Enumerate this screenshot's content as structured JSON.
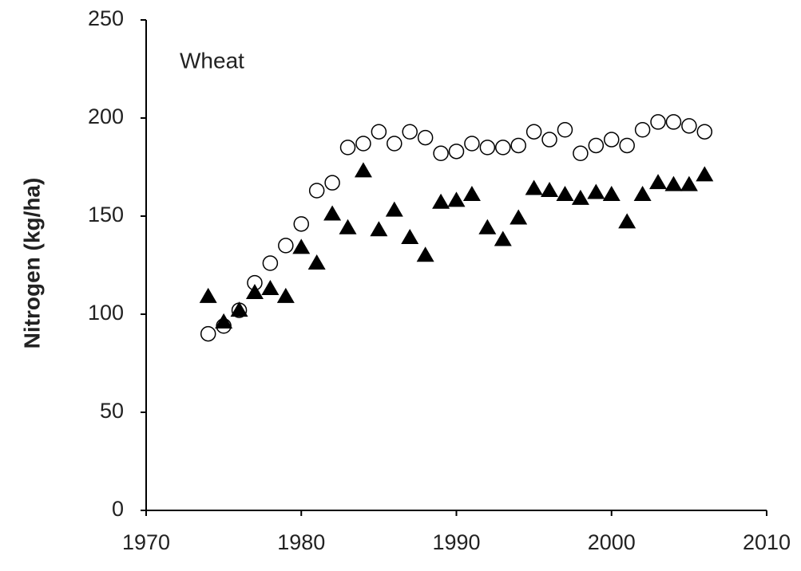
{
  "chart_data": {
    "type": "scatter",
    "y_label": "Nitrogen (kg/ha)",
    "annotation": "Wheat",
    "x": [
      1974,
      1975,
      1976,
      1977,
      1978,
      1979,
      1980,
      1981,
      1982,
      1983,
      1984,
      1985,
      1986,
      1987,
      1988,
      1989,
      1990,
      1991,
      1992,
      1993,
      1994,
      1995,
      1996,
      1997,
      1998,
      1999,
      2000,
      2001,
      2002,
      2003,
      2004,
      2005,
      2006
    ],
    "series": [
      {
        "color": "#000000",
        "marker": "circle-open",
        "values": [
          90,
          94,
          102,
          116,
          126,
          135,
          146,
          163,
          167,
          185,
          187,
          193,
          187,
          193,
          190,
          182,
          183,
          187,
          185,
          185,
          186,
          193,
          189,
          194,
          182,
          186,
          189,
          186,
          194,
          198,
          198,
          196,
          193
        ]
      },
      {
        "color": "#000000",
        "marker": "triangle",
        "values": [
          109,
          96,
          102,
          111,
          113,
          109,
          134,
          126,
          151,
          144,
          173,
          143,
          153,
          139,
          130,
          157,
          158,
          161,
          144,
          138,
          149,
          164,
          163,
          161,
          159,
          162,
          161,
          147,
          161,
          167,
          166,
          166,
          171
        ]
      }
    ],
    "xlim": [
      1970,
      2010
    ],
    "xticks": [
      1970,
      1980,
      1990,
      2000,
      2010
    ],
    "ylim": [
      0,
      250
    ],
    "yticks": [
      0,
      50,
      100,
      150,
      200,
      250
    ]
  }
}
